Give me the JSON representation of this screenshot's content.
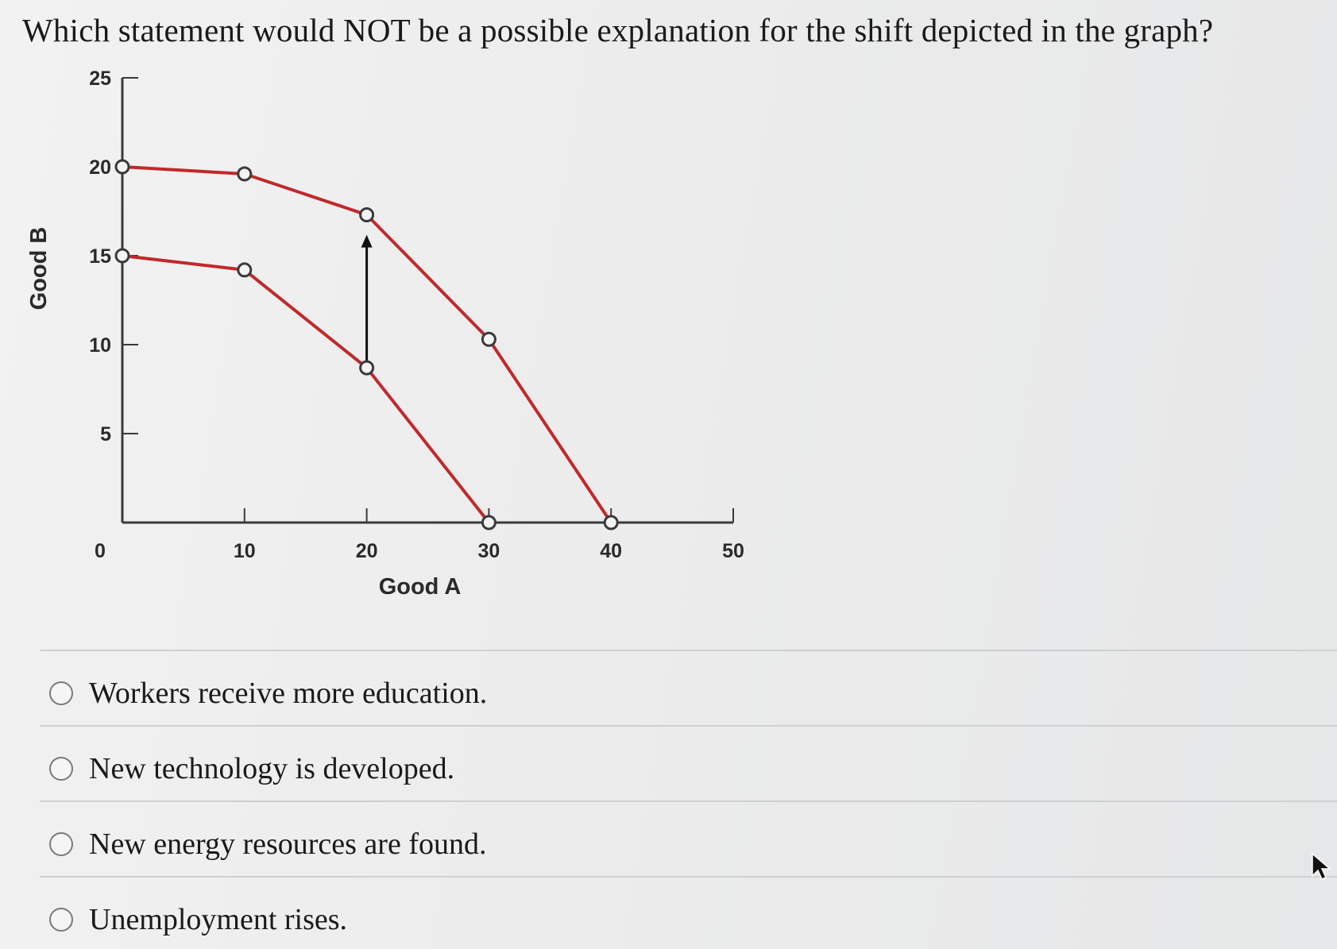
{
  "question": {
    "text": "Which statement would NOT be a possible explanation for the shift depicted in the graph?"
  },
  "chart_data": {
    "type": "line",
    "xlabel": "Good A",
    "ylabel": "Good B",
    "xlim": [
      0,
      50
    ],
    "ylim": [
      0,
      25
    ],
    "x_ticks": [
      "0",
      "10",
      "20",
      "30",
      "40",
      "50"
    ],
    "y_ticks": [
      "5",
      "10",
      "15",
      "20",
      "25"
    ],
    "grid": false,
    "line_color": "#c0292b",
    "arrow": {
      "x": 20,
      "from": 9,
      "to": 16
    },
    "series": [
      {
        "points": [
          [
            0,
            15
          ],
          [
            10,
            14.2
          ],
          [
            20,
            8.7
          ],
          [
            30,
            0
          ]
        ]
      },
      {
        "points": [
          [
            0,
            20
          ],
          [
            10,
            19.6
          ],
          [
            20,
            17.3
          ],
          [
            30,
            10.3
          ],
          [
            40,
            0
          ]
        ]
      }
    ]
  },
  "options": [
    {
      "label": "Workers receive more education."
    },
    {
      "label": "New technology is developed."
    },
    {
      "label": "New energy resources are found."
    },
    {
      "label": "Unemployment rises."
    }
  ],
  "colors": {
    "curve": "#c0292b",
    "axis": "#3a3a3a",
    "text": "#1a1a1a"
  },
  "icons": {
    "cursor": "mouse-pointer-icon",
    "radio": "radio-circle-icon"
  }
}
